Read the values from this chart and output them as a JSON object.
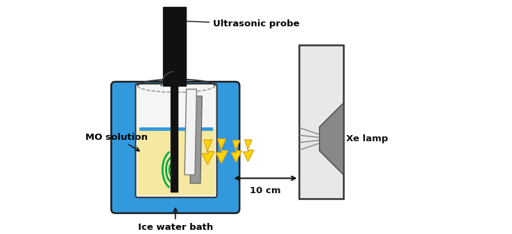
{
  "title": "",
  "labels": {
    "ultrasonic_probe": "Ultrasonic probe",
    "mo_solution": "MO solution",
    "ice_water_bath": "Ice water bath",
    "xe_lamp": "Xe lamp",
    "distance": "10 cm"
  },
  "colors": {
    "bg_color": "#ffffff",
    "outer_box_blue": "#3399DD",
    "inner_beaker_fill": "#e8e8e8",
    "solution_yellow": "#F5E8A0",
    "probe_black": "#111111",
    "film_white": "#f2f2f2",
    "film_gray": "#999999",
    "lightning_yellow": "#FFD700",
    "lightning_outline": "#DAA520",
    "green_waves": "#00AA44",
    "xe_lamp_box": "#e8e8e8",
    "xe_lamp_speaker": "#888888",
    "arrow_color": "#111111"
  },
  "figure_size": [
    7.38,
    3.38
  ],
  "dpi": 100
}
